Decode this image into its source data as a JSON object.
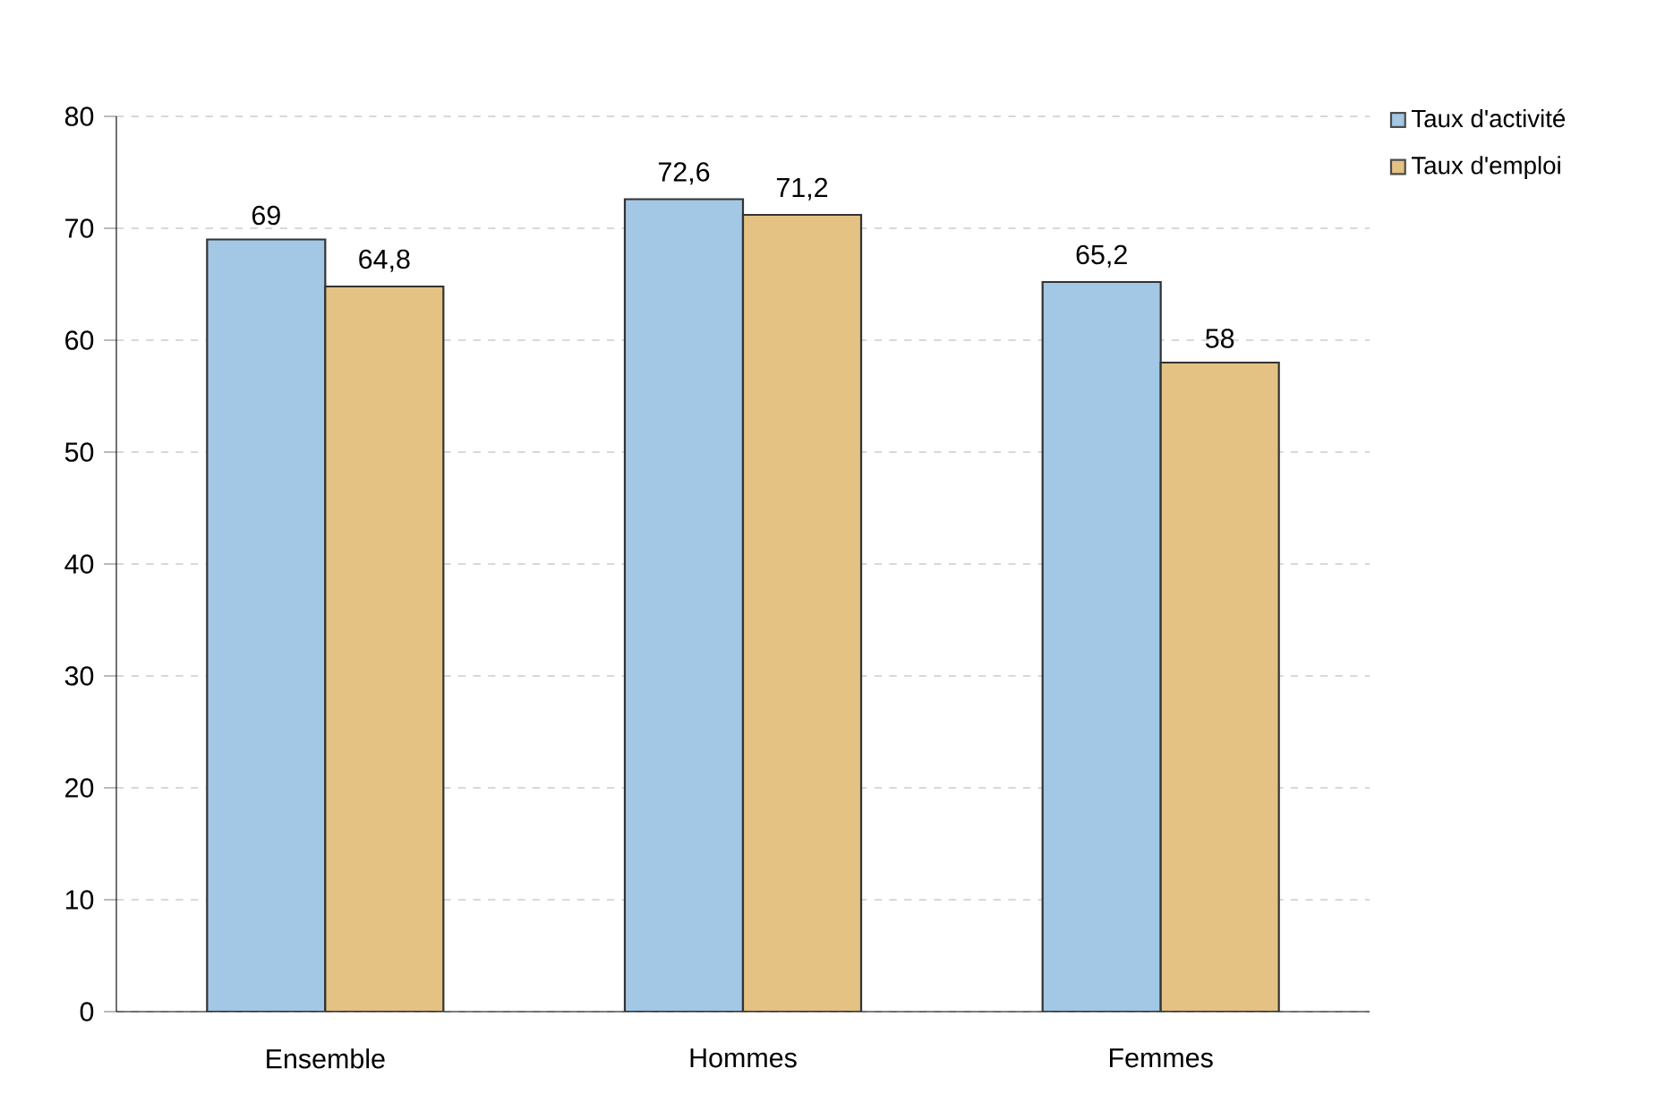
{
  "chart_data": {
    "type": "bar",
    "categories": [
      "Ensemble",
      "Hommes",
      "Femmes"
    ],
    "series": [
      {
        "name": "Taux d'activité",
        "color": "#a3c8e6",
        "values": [
          69,
          72.6,
          65.2
        ],
        "value_labels": [
          "69",
          "72,6",
          "65,2"
        ]
      },
      {
        "name": "Taux d'emploi",
        "color": "#e3c283",
        "values": [
          64.8,
          71.2,
          58
        ],
        "value_labels": [
          "64,8",
          "71,2",
          "58"
        ]
      }
    ],
    "ylim": [
      0,
      80
    ],
    "yticks": [
      0,
      10,
      20,
      30,
      40,
      50,
      60,
      70,
      80
    ],
    "grid": "y",
    "legend": "top right"
  }
}
